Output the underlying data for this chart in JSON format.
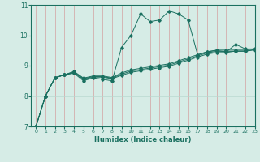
{
  "xlabel": "Humidex (Indice chaleur)",
  "bg_color": "#d6ece6",
  "grid_color_v": "#d4a0a0",
  "grid_color_h": "#b8d8d0",
  "line_color": "#1a7060",
  "xlim": [
    -0.5,
    23
  ],
  "ylim": [
    7,
    11
  ],
  "yticks": [
    7,
    8,
    9,
    10,
    11
  ],
  "xticks": [
    0,
    1,
    2,
    3,
    4,
    5,
    6,
    7,
    8,
    9,
    10,
    11,
    12,
    13,
    14,
    15,
    16,
    17,
    18,
    19,
    20,
    21,
    22,
    23
  ],
  "series": [
    [
      7.0,
      8.0,
      8.6,
      8.7,
      8.75,
      8.5,
      8.6,
      8.55,
      8.5,
      9.6,
      10.0,
      10.7,
      10.45,
      10.5,
      10.8,
      10.7,
      10.5,
      9.35,
      9.45,
      9.5,
      9.45,
      9.7,
      9.55,
      9.55
    ],
    [
      7.0,
      8.0,
      8.6,
      8.7,
      8.77,
      8.55,
      8.62,
      8.62,
      8.57,
      8.68,
      8.78,
      8.83,
      8.88,
      8.93,
      8.98,
      9.08,
      9.18,
      9.28,
      9.38,
      9.43,
      9.43,
      9.48,
      9.48,
      9.53
    ],
    [
      7.0,
      8.0,
      8.6,
      8.7,
      8.79,
      8.57,
      8.64,
      8.64,
      8.59,
      8.72,
      8.82,
      8.87,
      8.92,
      8.97,
      9.02,
      9.12,
      9.22,
      9.32,
      9.42,
      9.47,
      9.47,
      9.47,
      9.47,
      9.52
    ],
    [
      7.0,
      8.0,
      8.6,
      8.7,
      8.81,
      8.59,
      8.66,
      8.66,
      8.61,
      8.76,
      8.86,
      8.91,
      8.96,
      9.01,
      9.06,
      9.16,
      9.26,
      9.36,
      9.46,
      9.51,
      9.51,
      9.51,
      9.51,
      9.56
    ]
  ]
}
